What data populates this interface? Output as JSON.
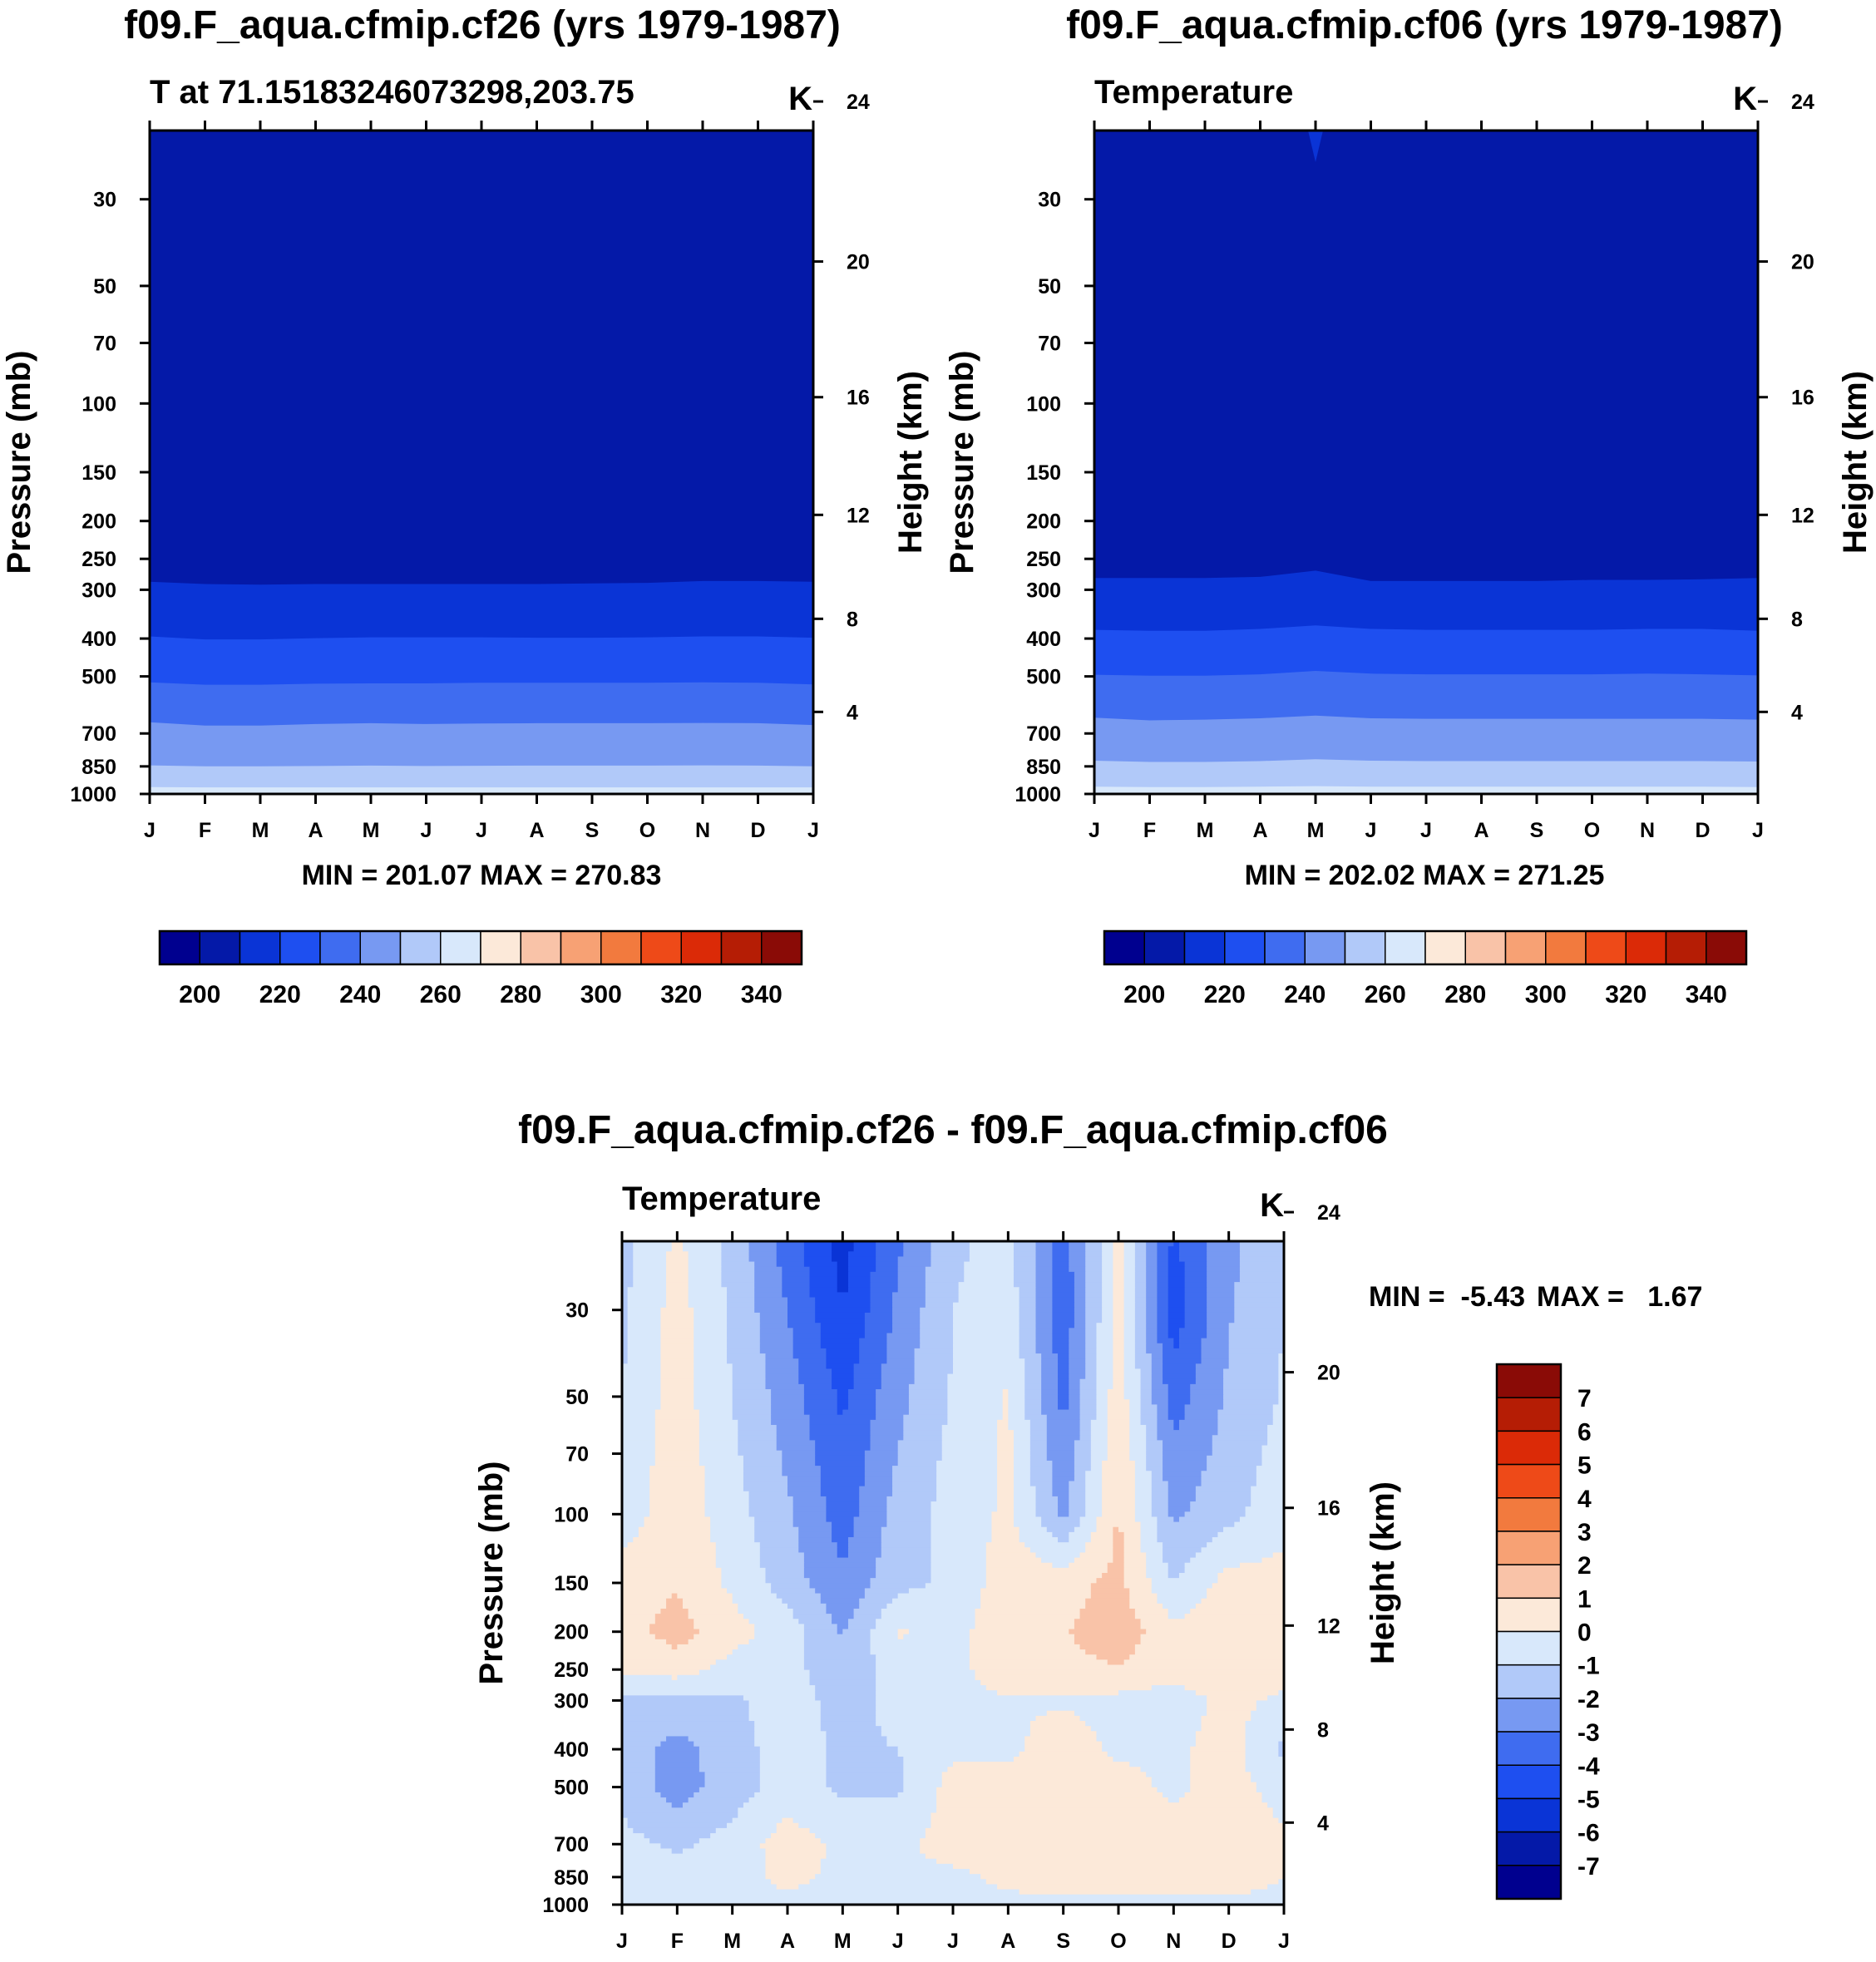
{
  "figure": {
    "colors": {
      "background": "#ffffff",
      "temperature_scale": [
        "#00008f",
        "#0419a8",
        "#0a34d6",
        "#1e4ff0",
        "#3f6cf0",
        "#7799f2",
        "#b1c9f9",
        "#d8e8fb",
        "#fce9d9",
        "#f9c3a8",
        "#f7a174",
        "#f27a3e",
        "#ee4a18",
        "#db2a07",
        "#b51d05",
        "#8a0b06"
      ],
      "diff_scale": [
        "#00008f",
        "#0419a8",
        "#0a34d6",
        "#1e4ff0",
        "#3f6cf0",
        "#7799f2",
        "#b1c9f9",
        "#d8e8fb",
        "#fce9d9",
        "#f9c3a8",
        "#f7a174",
        "#f27a3e",
        "#ee4a18",
        "#db2a07",
        "#b51d05",
        "#8a0b06"
      ]
    }
  },
  "chart_data": [
    {
      "type": "heatmap",
      "title": "f09.F_aqua.cfmip.cf26 (yrs 1979-1987)",
      "subtitle_left": "T at 71.15183246073298,203.75",
      "subtitle_right": "K",
      "xlabel": "",
      "ylabel": "Pressure (mb)",
      "ylabel_right": "Height (km)",
      "x_ticks": [
        "J",
        "F",
        "M",
        "A",
        "M",
        "J",
        "J",
        "A",
        "S",
        "O",
        "N",
        "D",
        "J"
      ],
      "y_ticks": [
        "30",
        "50",
        "70",
        "100",
        "150",
        "200",
        "250",
        "300",
        "400",
        "500",
        "700",
        "850",
        "1000"
      ],
      "y_right_ticks": [
        "24",
        "20",
        "16",
        "12",
        "8",
        "4"
      ],
      "ylim_mb": [
        1000,
        20
      ],
      "levels_K": [
        190,
        200,
        210,
        220,
        230,
        240,
        250,
        260,
        270,
        280,
        290,
        300,
        310,
        320,
        330,
        340,
        350
      ],
      "colorbar_labels": [
        "200",
        "220",
        "240",
        "260",
        "280",
        "300",
        "320",
        "340"
      ],
      "band_boundaries_mb": [
        {
          "upper_K": 210,
          "pressure_mb": [
            286,
            290,
            291,
            290,
            290,
            290,
            290,
            290,
            289,
            288,
            285,
            285,
            286
          ]
        },
        {
          "upper_K": 220,
          "pressure_mb": [
            395,
            402,
            402,
            399,
            397,
            397,
            397,
            398,
            398,
            397,
            395,
            395,
            398
          ]
        },
        {
          "upper_K": 230,
          "pressure_mb": [
            518,
            525,
            525,
            522,
            521,
            521,
            519,
            519,
            519,
            519,
            518,
            519,
            524
          ]
        },
        {
          "upper_K": 240,
          "pressure_mb": [
            655,
            668,
            668,
            662,
            659,
            662,
            660,
            659,
            659,
            659,
            658,
            659,
            666
          ]
        },
        {
          "upper_K": 250,
          "pressure_mb": [
            845,
            850,
            850,
            848,
            846,
            848,
            847,
            846,
            846,
            846,
            845,
            846,
            850
          ]
        },
        {
          "upper_K": 260,
          "pressure_mb": [
            960,
            962,
            962,
            962,
            962,
            962,
            962,
            962,
            962,
            962,
            962,
            962,
            962
          ]
        }
      ],
      "min_label": "MIN = 201.07",
      "max_label": "MAX = 270.83",
      "min": 201.07,
      "max": 270.83
    },
    {
      "type": "heatmap",
      "title": "f09.F_aqua.cfmip.cf06 (yrs 1979-1987)",
      "subtitle_left": "Temperature",
      "subtitle_right": "K",
      "xlabel": "",
      "ylabel": "Pressure (mb)",
      "ylabel_right": "Height (km)",
      "x_ticks": [
        "J",
        "F",
        "M",
        "A",
        "M",
        "J",
        "J",
        "A",
        "S",
        "O",
        "N",
        "D",
        "J"
      ],
      "y_ticks": [
        "30",
        "50",
        "70",
        "100",
        "150",
        "200",
        "250",
        "300",
        "400",
        "500",
        "700",
        "850",
        "1000"
      ],
      "y_right_ticks": [
        "24",
        "20",
        "16",
        "12",
        "8",
        "4"
      ],
      "ylim_mb": [
        1000,
        20
      ],
      "levels_K": [
        190,
        200,
        210,
        220,
        230,
        240,
        250,
        260,
        270,
        280,
        290,
        300,
        310,
        320,
        330,
        340,
        350
      ],
      "colorbar_labels": [
        "200",
        "220",
        "240",
        "260",
        "280",
        "300",
        "320",
        "340"
      ],
      "band_boundaries_mb": [
        {
          "upper_K": 210,
          "pressure_mb": [
            280,
            280,
            280,
            278,
            268,
            285,
            285,
            285,
            285,
            283,
            283,
            282,
            280
          ]
        },
        {
          "upper_K": 220,
          "pressure_mb": [
            380,
            382,
            382,
            378,
            370,
            378,
            380,
            380,
            380,
            380,
            378,
            378,
            382
          ]
        },
        {
          "upper_K": 230,
          "pressure_mb": [
            495,
            498,
            498,
            494,
            484,
            492,
            494,
            494,
            494,
            494,
            492,
            494,
            497
          ]
        },
        {
          "upper_K": 240,
          "pressure_mb": [
            638,
            648,
            645,
            640,
            630,
            640,
            642,
            642,
            642,
            642,
            642,
            642,
            645
          ]
        },
        {
          "upper_K": 250,
          "pressure_mb": [
            822,
            828,
            828,
            824,
            815,
            822,
            824,
            824,
            824,
            824,
            824,
            824,
            826
          ]
        },
        {
          "upper_K": 260,
          "pressure_mb": [
            958,
            960,
            960,
            958,
            955,
            958,
            958,
            958,
            958,
            958,
            958,
            958,
            960
          ]
        }
      ],
      "min_label": "MIN = 202.02",
      "max_label": "MAX = 271.25",
      "min": 202.02,
      "max": 271.25
    },
    {
      "type": "heatmap",
      "title": "f09.F_aqua.cfmip.cf26 - f09.F_aqua.cfmip.cf06",
      "subtitle_left": "Temperature",
      "subtitle_right": "K",
      "xlabel": "",
      "ylabel": "Pressure (mb)",
      "ylabel_right": "Height (km)",
      "x_ticks": [
        "J",
        "F",
        "M",
        "A",
        "M",
        "J",
        "J",
        "A",
        "S",
        "O",
        "N",
        "D",
        "J"
      ],
      "y_ticks": [
        "30",
        "50",
        "70",
        "100",
        "150",
        "200",
        "250",
        "300",
        "400",
        "500",
        "700",
        "850",
        "1000"
      ],
      "y_right_ticks": [
        "24",
        "20",
        "16",
        "12",
        "8",
        "4"
      ],
      "ylim_mb": [
        1000,
        20
      ],
      "levels_K": [
        -8,
        -7,
        -6,
        -5,
        -4,
        -3,
        -2,
        -1,
        0,
        1,
        2,
        3,
        4,
        5,
        6,
        7,
        8
      ],
      "colorbar_labels": [
        "7",
        "6",
        "5",
        "4",
        "3",
        "2",
        "1",
        "0",
        "-1",
        "-2",
        "-3",
        "-4",
        "-5",
        "-6",
        "-7"
      ],
      "pressure_levels_mb": [
        20,
        30,
        50,
        70,
        100,
        150,
        200,
        250,
        300,
        400,
        500,
        700,
        850,
        1000
      ],
      "grid_K": [
        [
          -1.3,
          0.2,
          -1.3,
          -3.5,
          -5.4,
          -3.2,
          -1.2,
          -0.6,
          -3.5,
          0.3,
          -4.2,
          -2.3,
          -1.0
        ],
        [
          -1.2,
          0.4,
          -1.2,
          -3.0,
          -5.0,
          -2.8,
          -1.0,
          -0.5,
          -3.7,
          0.4,
          -4.6,
          -2.1,
          -1.0
        ],
        [
          -1.0,
          0.5,
          -1.0,
          -2.5,
          -4.2,
          -2.3,
          -0.9,
          0.1,
          -3.3,
          0.6,
          -3.5,
          -1.8,
          -0.9
        ],
        [
          -0.8,
          0.6,
          -0.8,
          -2.2,
          -3.8,
          -2.0,
          -0.7,
          0.2,
          -2.8,
          0.9,
          -2.8,
          -1.6,
          -0.6
        ],
        [
          -0.6,
          0.7,
          -0.6,
          -1.8,
          -3.5,
          -1.6,
          -0.6,
          0.2,
          -2.2,
          1.1,
          -2.2,
          -1.3,
          -0.3
        ],
        [
          0.5,
          0.9,
          -0.2,
          -1.5,
          -2.8,
          -1.3,
          -0.8,
          0.6,
          0.6,
          1.3,
          -1.0,
          0.4,
          0.3
        ],
        [
          0.6,
          1.4,
          0.4,
          -0.5,
          -2.1,
          0.1,
          -0.4,
          0.8,
          0.9,
          1.6,
          0.3,
          0.7,
          0.5
        ],
        [
          0.3,
          0.5,
          -0.4,
          -0.6,
          -1.8,
          -0.5,
          -0.3,
          0.6,
          0.8,
          0.9,
          0.4,
          0.6,
          0.4
        ],
        [
          -1.2,
          -1.4,
          -1.2,
          -0.4,
          -1.5,
          -0.6,
          -0.2,
          -0.1,
          -0.1,
          -0.3,
          -0.5,
          0.3,
          -0.2
        ],
        [
          -1.5,
          -2.3,
          -1.5,
          -0.4,
          -1.2,
          -1.0,
          -0.2,
          -0.2,
          0.5,
          -0.2,
          -0.2,
          0.4,
          -1.2
        ],
        [
          -1.3,
          -2.5,
          -1.5,
          -0.5,
          -1.2,
          -1.2,
          0.4,
          0.4,
          0.6,
          0.4,
          -0.2,
          0.4,
          -0.4
        ],
        [
          -0.7,
          -1.2,
          -0.6,
          0.5,
          -0.2,
          -0.2,
          0.4,
          0.4,
          0.6,
          0.5,
          0.4,
          0.6,
          0.2
        ],
        [
          -0.4,
          -0.5,
          -0.3,
          0.2,
          -0.2,
          -0.2,
          -0.2,
          0.2,
          0.4,
          0.3,
          0.4,
          0.4,
          0.0
        ],
        [
          -0.3,
          -0.4,
          -0.3,
          -0.2,
          -0.2,
          -0.2,
          -0.2,
          -0.2,
          -0.2,
          -0.2,
          -0.2,
          -0.2,
          -0.2
        ]
      ],
      "min_label": "MIN =  -5.43",
      "max_label": "MAX =   1.67",
      "min": -5.43,
      "max": 1.67
    }
  ]
}
